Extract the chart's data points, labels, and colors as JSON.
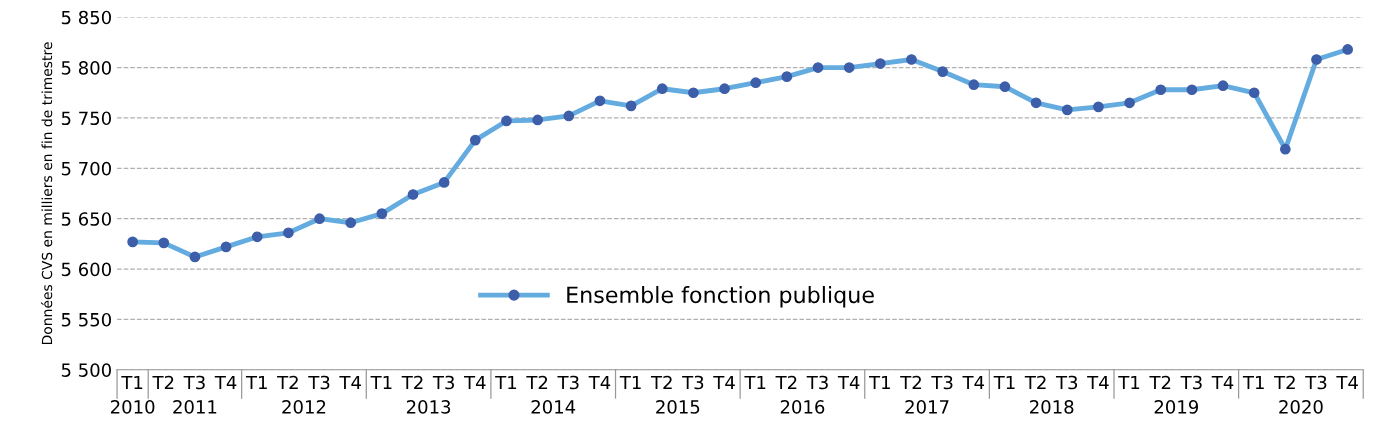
{
  "chart_data": {
    "type": "line",
    "ylabel": "Données CVS en milliers en fin de trimestre",
    "categories": [
      "T1",
      "T2",
      "T3",
      "T4",
      "T1",
      "T2",
      "T3",
      "T4",
      "T1",
      "T2",
      "T3",
      "T4",
      "T1",
      "T2",
      "T3",
      "T4",
      "T1",
      "T2",
      "T3",
      "T4",
      "T1",
      "T2",
      "T3",
      "T4",
      "T1",
      "T2",
      "T3",
      "T4",
      "T1",
      "T2",
      "T3",
      "T4",
      "T1",
      "T2",
      "T3",
      "T4",
      "T1",
      "T2",
      "T3",
      "T4"
    ],
    "annotations": [
      "2010",
      "2011",
      "2012",
      "2013",
      "2014",
      "2015",
      "2016",
      "2017",
      "2018",
      "2019",
      "2020"
    ],
    "series": [
      {
        "name": "Ensemble fonction publique",
        "color": "#64abe0",
        "colors": [
          "#3d5ea8",
          "#3d5ea8",
          "#3d5ea8",
          "#3d5ea8",
          "#3d5ea8",
          "#3d5ea8",
          "#3d5ea8",
          "#3d5ea8",
          "#3d5ea8",
          "#3d5ea8",
          "#3d5ea8",
          "#3d5ea8",
          "#3d5ea8",
          "#3d5ea8",
          "#3d5ea8",
          "#3d5ea8",
          "#3d5ea8",
          "#3d5ea8",
          "#3d5ea8",
          "#3d5ea8",
          "#3d5ea8",
          "#3d5ea8",
          "#3d5ea8",
          "#3d5ea8",
          "#3d5ea8",
          "#3d5ea8",
          "#3d5ea8",
          "#3d5ea8",
          "#3d5ea8",
          "#3d5ea8",
          "#3d5ea8",
          "#3d5ea8",
          "#3d5ea8",
          "#3d5ea8",
          "#3d5ea8",
          "#3d5ea8",
          "#3d5ea8",
          "#3d5ea8",
          "#3d5ea8",
          "#3d5ea8"
        ],
        "values": [
          5627,
          5626,
          5612,
          5622,
          5632,
          5636,
          5650,
          5646,
          5655,
          5674,
          5686,
          5728,
          5747,
          5748,
          5752,
          5767,
          5762,
          5779,
          5775,
          5779,
          5785,
          5791,
          5800,
          5800,
          5804,
          5808,
          5796,
          5783,
          5781,
          5765,
          5758,
          5761,
          5765,
          5778,
          5778,
          5782,
          5775,
          5719,
          5808,
          5818
        ]
      }
    ],
    "ylim": [
      5500,
      5850
    ],
    "yticks": [
      {
        "value": 5500,
        "label": "5 500"
      },
      {
        "value": 5550,
        "label": "5 550"
      },
      {
        "value": 5600,
        "label": "5 600"
      },
      {
        "value": 5650,
        "label": "5 650"
      },
      {
        "value": 5700,
        "label": "5 700"
      },
      {
        "value": 5750,
        "label": "5 750"
      },
      {
        "value": 5800,
        "label": "5 800"
      },
      {
        "value": 5850,
        "label": "5 850"
      }
    ],
    "grid": "y",
    "legend": "bottom",
    "marker": "circle",
    "line_style": "solid"
  }
}
